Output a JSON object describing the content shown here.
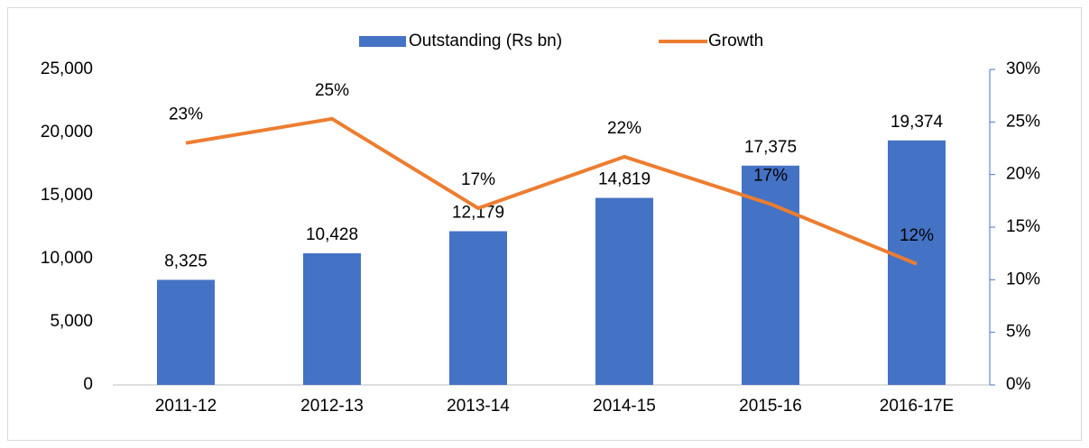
{
  "chart_data": {
    "type": "bar_line",
    "categories": [
      "2011-12",
      "2012-13",
      "2013-14",
      "2014-15",
      "2015-16",
      "2016-17E"
    ],
    "series": [
      {
        "name": "Outstanding (Rs bn)",
        "type": "bar",
        "color": "#4472c4",
        "values": [
          8325,
          10428,
          12179,
          14819,
          17375,
          19374
        ],
        "value_labels": [
          "8,325",
          "10,428",
          "12,179",
          "14,819",
          "17,375",
          "19,374"
        ]
      },
      {
        "name": "Growth",
        "type": "line",
        "axis": "y2",
        "color": "#ed7d31",
        "values": [
          23,
          25.3,
          16.8,
          21.7,
          17.2,
          11.5
        ],
        "value_labels": [
          "23%",
          "25%",
          "17%",
          "22%",
          "17%",
          "12%"
        ]
      }
    ],
    "ylim": [
      0,
      25000
    ],
    "yticks": [
      0,
      {
        "value": 5000,
        "label": "5,000"
      },
      {
        "value": 10000,
        "label": "10,000"
      },
      {
        "value": 15000,
        "label": "15,000"
      },
      {
        "value": 20000,
        "label": "20,000"
      },
      {
        "value": 25000,
        "label": "25,000"
      }
    ],
    "y2lim": [
      0,
      30
    ],
    "y2ticks": [
      {
        "value": 0,
        "label": "0%"
      },
      {
        "value": 5,
        "label": "5%"
      },
      {
        "value": 10,
        "label": "10%"
      },
      {
        "value": 15,
        "label": "15%"
      },
      {
        "value": 20,
        "label": "20%"
      },
      {
        "value": 25,
        "label": "25%"
      },
      {
        "value": 30,
        "label": "30%"
      }
    ],
    "legend": "top"
  }
}
